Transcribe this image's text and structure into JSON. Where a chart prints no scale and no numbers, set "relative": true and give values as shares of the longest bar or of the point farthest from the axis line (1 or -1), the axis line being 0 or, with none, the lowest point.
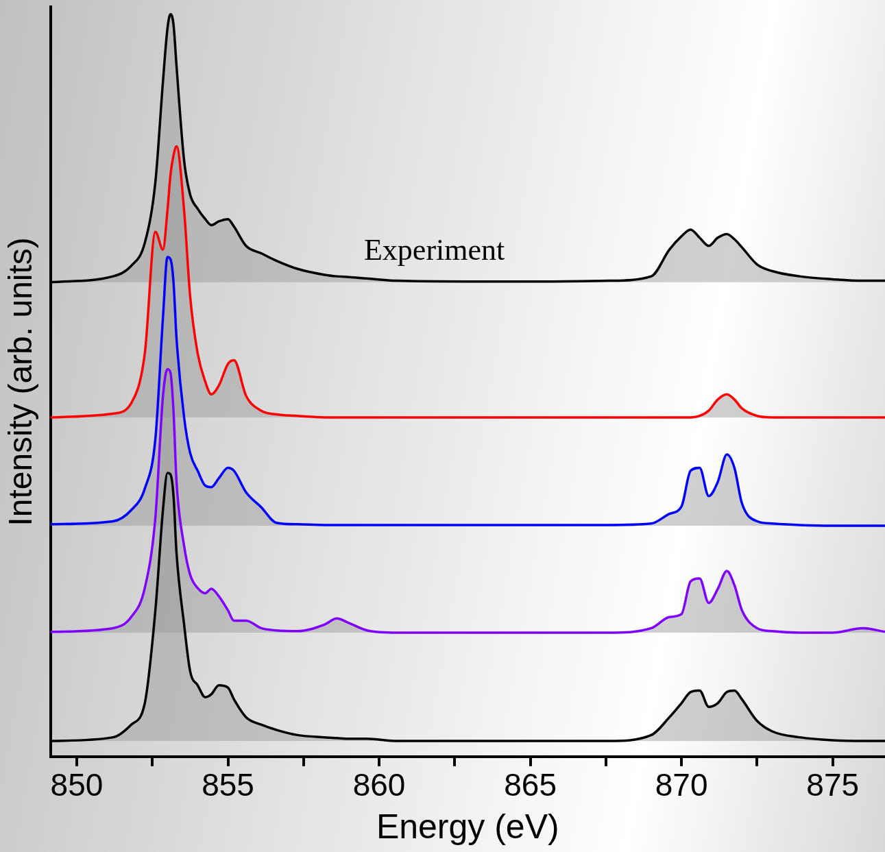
{
  "chart_data": {
    "type": "line",
    "xlabel": "Energy (eV)",
    "ylabel": "Intensity (arb. units)",
    "relative": true,
    "tick_labels": "x",
    "grid": false,
    "legend": false,
    "marker": "none",
    "line_style": "solid",
    "xlim": [
      849.13,
      876.73
    ],
    "xticks": [
      850,
      {
        "value": 852.5,
        "label": null
      },
      855,
      {
        "value": 857.5,
        "label": null
      },
      860,
      {
        "value": 862.5,
        "label": null
      },
      865,
      {
        "value": 867.5,
        "label": null
      },
      870,
      {
        "value": 872.5,
        "label": null
      },
      875
    ],
    "x": [
      849.13,
      851.2,
      851.8,
      852.25,
      852.6,
      852.85,
      853.0,
      853.1,
      853.2,
      853.3,
      853.55,
      853.75,
      854.0,
      854.25,
      854.45,
      854.7,
      855.0,
      855.2,
      855.6,
      856.1,
      856.6,
      857.3,
      858.2,
      858.6,
      859.0,
      859.6,
      860.6,
      862.9,
      865.2,
      867.6,
      869.0,
      869.6,
      870.0,
      870.3,
      870.6,
      870.9,
      871.2,
      871.5,
      871.75,
      872.0,
      872.5,
      873.0,
      873.9,
      875.0,
      876.0,
      876.73
    ],
    "series": [
      {
        "name": "Experiment",
        "color": "#000000",
        "values": [
          0.639,
          0.647,
          0.661,
          0.692,
          0.774,
          0.909,
          0.981,
          1.0,
          0.986,
          0.93,
          0.803,
          0.757,
          0.738,
          0.724,
          0.716,
          0.721,
          0.724,
          0.714,
          0.688,
          0.678,
          0.668,
          0.657,
          0.649,
          0.647,
          0.646,
          0.644,
          0.641,
          0.64,
          0.64,
          0.641,
          0.647,
          0.683,
          0.701,
          0.71,
          0.699,
          0.688,
          0.699,
          0.704,
          0.697,
          0.686,
          0.663,
          0.654,
          0.647,
          0.643,
          0.641,
          0.641
        ]
      },
      {
        "color": "#ff0000",
        "values": [
          0.457,
          0.462,
          0.476,
          0.543,
          0.707,
          0.683,
          0.736,
          0.784,
          0.81,
          0.822,
          0.736,
          0.62,
          0.543,
          0.505,
          0.488,
          0.5,
          0.529,
          0.534,
          0.486,
          0.466,
          0.461,
          0.459,
          0.457,
          0.457,
          0.457,
          0.457,
          0.457,
          0.457,
          0.457,
          0.457,
          0.457,
          0.457,
          0.457,
          0.457,
          0.459,
          0.466,
          0.481,
          0.488,
          0.481,
          0.469,
          0.459,
          0.457,
          0.457,
          0.457,
          0.457,
          0.457
        ]
      },
      {
        "color": "#0000ff",
        "values": [
          0.313,
          0.317,
          0.332,
          0.361,
          0.428,
          0.591,
          0.673,
          0.67,
          0.639,
          0.563,
          0.457,
          0.409,
          0.385,
          0.365,
          0.363,
          0.375,
          0.389,
          0.385,
          0.356,
          0.336,
          0.315,
          0.313,
          0.312,
          0.312,
          0.312,
          0.312,
          0.312,
          0.312,
          0.312,
          0.312,
          0.314,
          0.327,
          0.337,
          0.385,
          0.389,
          0.351,
          0.37,
          0.407,
          0.389,
          0.341,
          0.317,
          0.314,
          0.312,
          0.311,
          0.311,
          0.311
        ]
      },
      {
        "color": "#8000ff",
        "values": [
          0.168,
          0.173,
          0.188,
          0.227,
          0.322,
          0.485,
          0.522,
          0.517,
          0.465,
          0.37,
          0.284,
          0.245,
          0.227,
          0.22,
          0.226,
          0.216,
          0.197,
          0.183,
          0.183,
          0.173,
          0.17,
          0.169,
          0.178,
          0.186,
          0.18,
          0.17,
          0.167,
          0.167,
          0.167,
          0.167,
          0.173,
          0.188,
          0.192,
          0.236,
          0.24,
          0.207,
          0.226,
          0.25,
          0.231,
          0.197,
          0.173,
          0.169,
          0.167,
          0.167,
          0.173,
          0.168
        ]
      },
      {
        "color": "#000000",
        "values": [
          0.021,
          0.026,
          0.043,
          0.072,
          0.197,
          0.332,
          0.382,
          0.38,
          0.351,
          0.274,
          0.178,
          0.115,
          0.096,
          0.08,
          0.084,
          0.096,
          0.093,
          0.077,
          0.053,
          0.043,
          0.036,
          0.029,
          0.026,
          0.025,
          0.024,
          0.024,
          0.021,
          0.021,
          0.021,
          0.021,
          0.029,
          0.053,
          0.072,
          0.087,
          0.089,
          0.067,
          0.072,
          0.087,
          0.089,
          0.077,
          0.048,
          0.034,
          0.026,
          0.022,
          0.021,
          0.021
        ]
      }
    ]
  }
}
